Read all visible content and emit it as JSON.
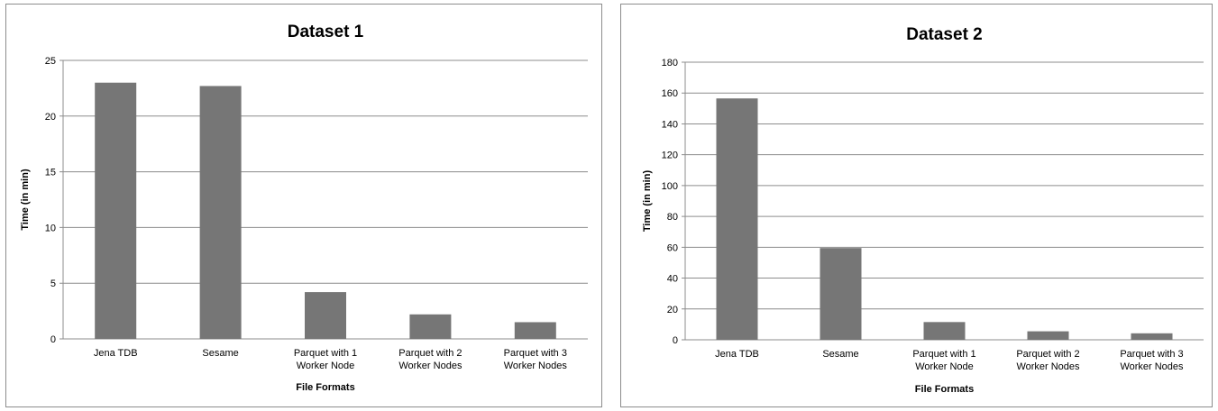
{
  "chart_data": [
    {
      "type": "bar",
      "title": "Dataset 1",
      "xlabel": "File Formats",
      "ylabel": "Time (in min)",
      "categories": [
        [
          "Jena TDB"
        ],
        [
          "Sesame"
        ],
        [
          "Parquet with 1",
          "Worker Node"
        ],
        [
          "Parquet with 2",
          "Worker Nodes"
        ],
        [
          "Parquet with 3",
          "Worker Nodes"
        ]
      ],
      "values": [
        23,
        22.7,
        4.2,
        2.2,
        1.5
      ],
      "ylim": [
        0,
        25
      ],
      "yticks": [
        0,
        5,
        10,
        15,
        20,
        25
      ],
      "grid": true,
      "bar_color": "#767676"
    },
    {
      "type": "bar",
      "title": "Dataset 2",
      "xlabel": "File Formats",
      "ylabel": "Time (in min)",
      "categories": [
        [
          "Jena TDB"
        ],
        [
          "Sesame"
        ],
        [
          "Parquet with 1",
          "Worker Node"
        ],
        [
          "Parquet with 2",
          "Worker Nodes"
        ],
        [
          "Parquet with 3",
          "Worker Nodes"
        ]
      ],
      "values": [
        156.5,
        59.5,
        11.5,
        5.5,
        4.2
      ],
      "ylim": [
        0,
        180
      ],
      "yticks": [
        0,
        20,
        40,
        60,
        80,
        100,
        120,
        140,
        160,
        180
      ],
      "grid": true,
      "bar_color": "#767676"
    }
  ]
}
